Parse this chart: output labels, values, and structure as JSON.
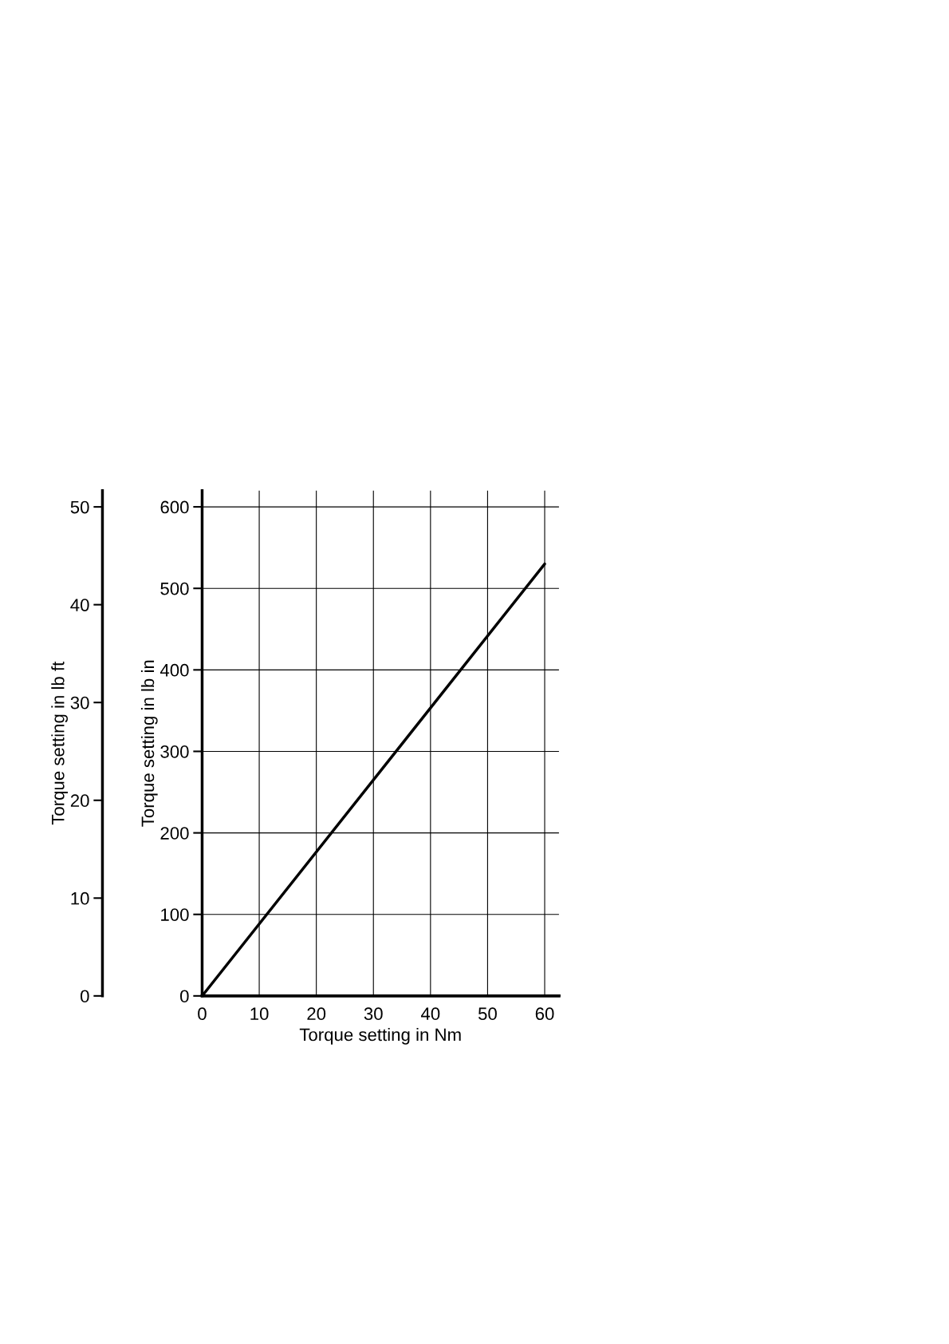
{
  "chart_data": {
    "type": "line",
    "xlabel": "Torque setting in Nm",
    "ylabel": "Torque setting in lb in",
    "y2label": "Torque setting in lb ft",
    "x": [
      0,
      60
    ],
    "series": [
      {
        "color": "#000000",
        "values": [
          0,
          530
        ]
      }
    ],
    "xlim": [
      0,
      62.5
    ],
    "xticks": [
      0,
      10,
      20,
      30,
      40,
      50,
      60
    ],
    "ylim": [
      0,
      620
    ],
    "yticks": [
      0,
      100,
      200,
      300,
      400,
      500,
      600
    ],
    "y2lim": [
      0,
      51.67
    ],
    "y2ticks": [
      0,
      10,
      20,
      30,
      40,
      50
    ],
    "grid": true,
    "marker": "none",
    "line_style": "solid",
    "legend": false
  }
}
